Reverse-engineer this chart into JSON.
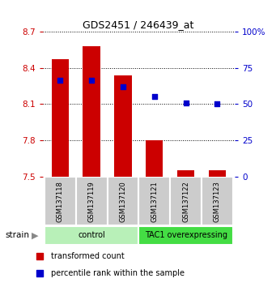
{
  "title": "GDS2451 / 246439_at",
  "samples": [
    "GSM137118",
    "GSM137119",
    "GSM137120",
    "GSM137121",
    "GSM137122",
    "GSM137123"
  ],
  "red_values": [
    8.47,
    8.58,
    8.34,
    7.8,
    7.55,
    7.55
  ],
  "blue_values": [
    8.3,
    8.3,
    8.24,
    8.16,
    8.11,
    8.1
  ],
  "red_base": 7.5,
  "ylim_left": [
    7.5,
    8.7
  ],
  "ylim_right": [
    0,
    100
  ],
  "yticks_left": [
    7.5,
    7.8,
    8.1,
    8.4,
    8.7
  ],
  "yticks_right": [
    0,
    25,
    50,
    75,
    100
  ],
  "groups": [
    {
      "label": "control",
      "indices": [
        0,
        1,
        2
      ],
      "color": "#b8f0b8"
    },
    {
      "label": "TAC1 overexpressing",
      "indices": [
        3,
        4,
        5
      ],
      "color": "#44dd44"
    }
  ],
  "bar_color": "#cc0000",
  "dot_color": "#0000cc",
  "bar_width": 0.55,
  "dot_size": 25,
  "legend_red_label": "transformed count",
  "legend_blue_label": "percentile rank within the sample",
  "strain_label": "strain",
  "left_tick_color": "#cc0000",
  "right_tick_color": "#0000cc",
  "background_color": "#ffffff",
  "plot_bg_color": "#ffffff",
  "tick_area_bg": "#cccccc",
  "box_edge_color": "#888888"
}
